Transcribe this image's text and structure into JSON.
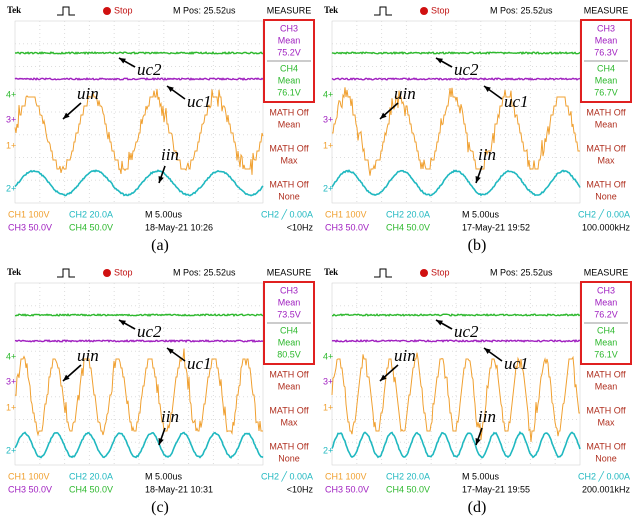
{
  "channel_markers": [
    "4+",
    "3+",
    "1+",
    "2+"
  ],
  "panels": [
    {
      "header": {
        "brand": "Tek",
        "status": "Stop",
        "position": "M Pos: 25.52us",
        "menu": "MEASURE"
      },
      "measure": [
        {
          "source": "CH3",
          "stat": "Mean",
          "value": "75.2V"
        },
        {
          "source": "CH4",
          "stat": "Mean",
          "value": "76.1V"
        },
        {
          "source": "MATH Off",
          "stat": "Mean"
        },
        {
          "source": "MATH Off",
          "stat": "Max"
        },
        {
          "source": "MATH Off",
          "stat": "None"
        }
      ],
      "labels": {
        "uc2": "uc2",
        "uc1": "uc1",
        "uin": "uin",
        "iin": "iin"
      },
      "footer": [
        [
          "CH1 100V",
          "CH2 20.0A",
          "M 5.00us",
          "CH2 ╱ 0.00A"
        ],
        [
          "CH3 50.0V",
          "CH4 50.0V",
          "18-May-21 10:26",
          "<10Hz"
        ]
      ],
      "caption": "(a)"
    },
    {
      "header": {
        "brand": "Tek",
        "status": "Stop",
        "position": "M Pos: 25.52us",
        "menu": "MEASURE"
      },
      "measure": [
        {
          "source": "CH3",
          "stat": "Mean",
          "value": "76.3V"
        },
        {
          "source": "CH4",
          "stat": "Mean",
          "value": "76.7V"
        },
        {
          "source": "MATH Off",
          "stat": "Mean"
        },
        {
          "source": "MATH Off",
          "stat": "Max"
        },
        {
          "source": "MATH Off",
          "stat": "None"
        }
      ],
      "labels": {
        "uc2": "uc2",
        "uc1": "uc1",
        "uin": "uin",
        "iin": "iin"
      },
      "footer": [
        [
          "CH1 100V",
          "CH2 20.0A",
          "M 5.00us",
          "CH2 ╱ 0.00A"
        ],
        [
          "CH3 50.0V",
          "CH4 50.0V",
          "17-May-21 19:52",
          "100.000kHz"
        ]
      ],
      "caption": "(b)"
    },
    {
      "header": {
        "brand": "Tek",
        "status": "Stop",
        "position": "M Pos: 25.52us",
        "menu": "MEASURE"
      },
      "measure": [
        {
          "source": "CH3",
          "stat": "Mean",
          "value": "73.5V"
        },
        {
          "source": "CH4",
          "stat": "Mean",
          "value": "80.5V"
        },
        {
          "source": "MATH Off",
          "stat": "Mean"
        },
        {
          "source": "MATH Off",
          "stat": "Max"
        },
        {
          "source": "MATH Off",
          "stat": "None"
        }
      ],
      "labels": {
        "uc2": "uc2",
        "uc1": "uc1",
        "uin": "uin",
        "iin": "iin"
      },
      "footer": [
        [
          "CH1 100V",
          "CH2 20.0A",
          "M 5.00us",
          "CH2 ╱ 0.00A"
        ],
        [
          "CH3 50.0V",
          "CH4 50.0V",
          "18-May-21 10:31",
          "<10Hz"
        ]
      ],
      "caption": "(c)"
    },
    {
      "header": {
        "brand": "Tek",
        "status": "Stop",
        "position": "M Pos: 25.52us",
        "menu": "MEASURE"
      },
      "measure": [
        {
          "source": "CH3",
          "stat": "Mean",
          "value": "76.2V"
        },
        {
          "source": "CH4",
          "stat": "Mean",
          "value": "76.1V"
        },
        {
          "source": "MATH Off",
          "stat": "Mean"
        },
        {
          "source": "MATH Off",
          "stat": "Max"
        },
        {
          "source": "MATH Off",
          "stat": "None"
        }
      ],
      "labels": {
        "uc2": "uc2",
        "uc1": "uc1",
        "uin": "uin",
        "iin": "iin"
      },
      "footer": [
        [
          "CH1 100V",
          "CH2 20.0A",
          "M 5.00us",
          "CH2 ╱ 0.00A"
        ],
        [
          "CH3 50.0V",
          "CH4 50.0V",
          "17-May-21 19:55",
          "200.001kHz"
        ]
      ],
      "caption": "(d)"
    }
  ]
}
